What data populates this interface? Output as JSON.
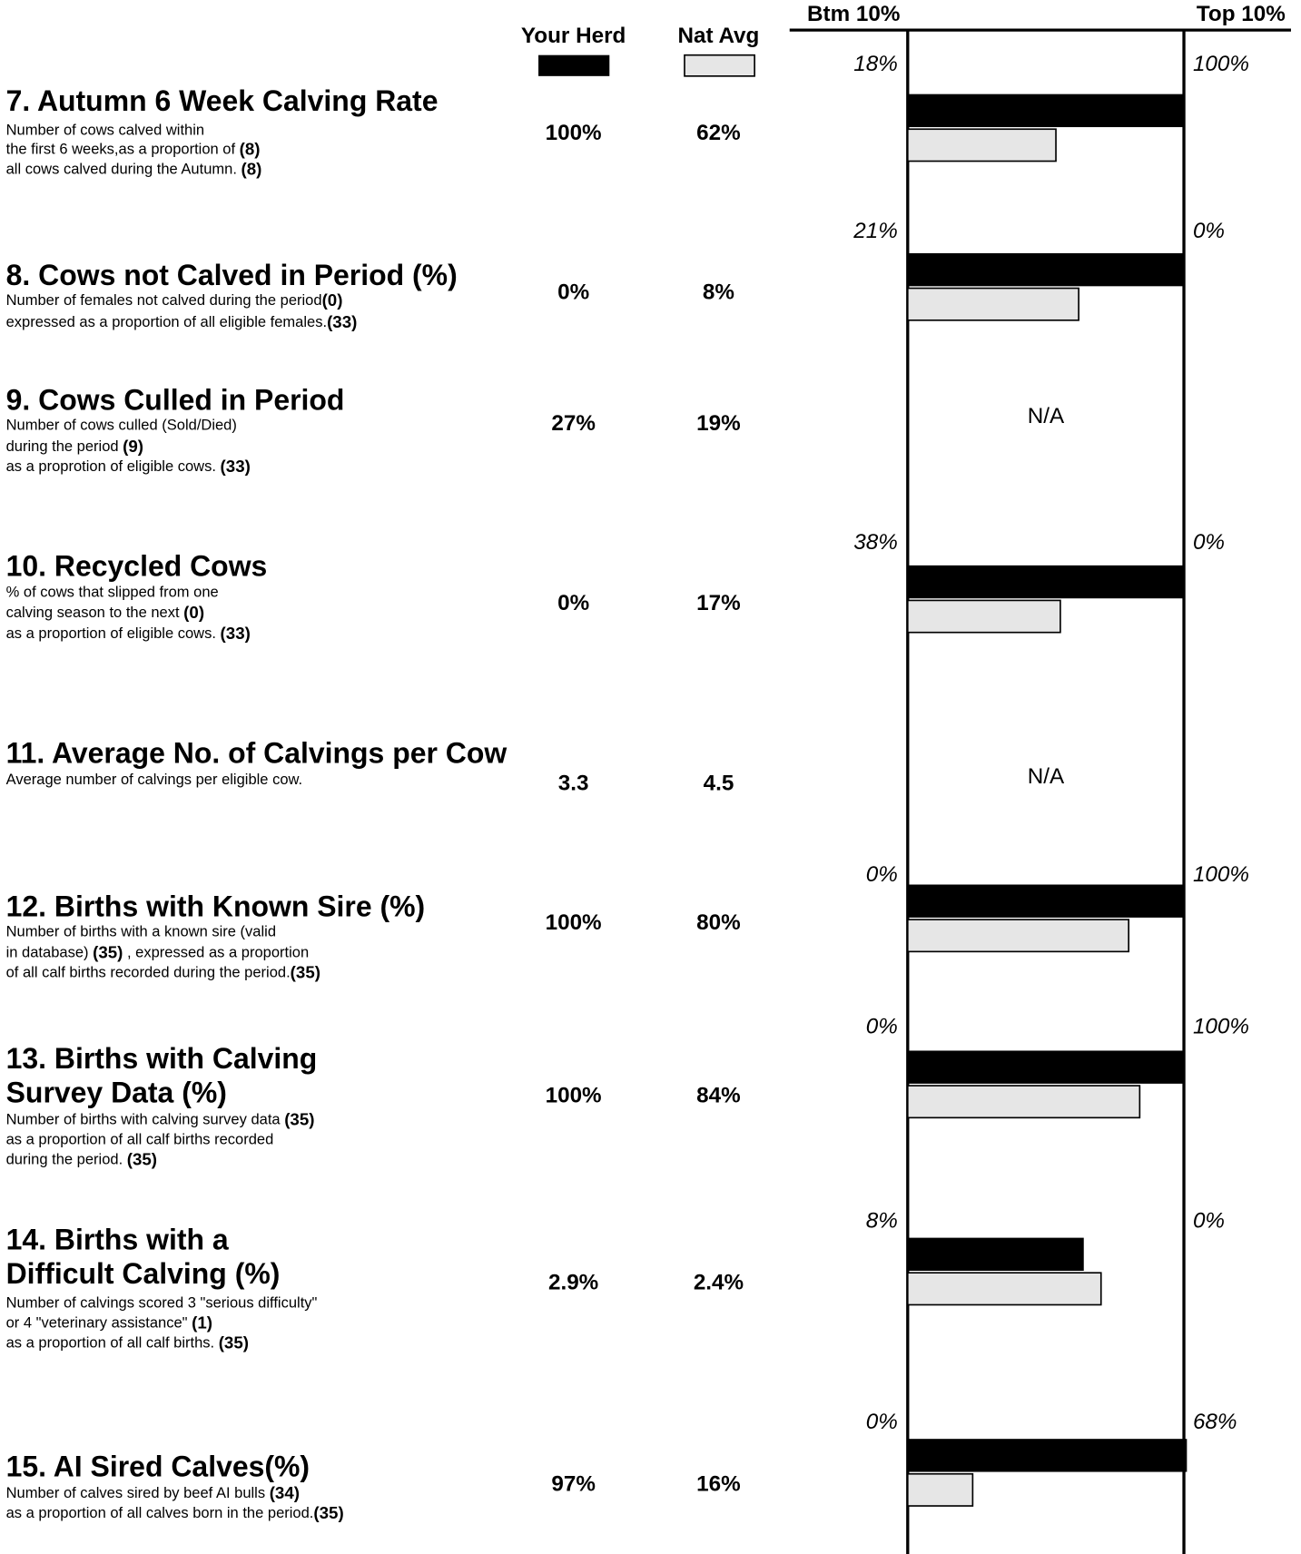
{
  "header": {
    "your_herd": "Your Herd",
    "nat_avg": "Nat Avg",
    "bottom": "Btm 10%",
    "top": "Top 10%",
    "herd_color": "#000000",
    "nat_color": "#e6e6e6"
  },
  "rows": [
    {
      "title": [
        "7. Autumn 6 Week Calving Rate"
      ],
      "description": [
        [
          {
            "text": "Number of cows calved within"
          }
        ],
        [
          {
            "text": "the first 6 weeks,as a proportion of  "
          },
          {
            "text": "(8)",
            "bold": true
          }
        ],
        [
          {
            "text": "all cows calved during the Autumn.  "
          },
          {
            "text": "(8)",
            "bold": true
          }
        ]
      ],
      "herd": {
        "value": 100,
        "label": "100%"
      },
      "nat": {
        "value": 62,
        "label": "62%"
      },
      "btm": {
        "value": 18,
        "label": "18%"
      },
      "top": {
        "value": 100,
        "label": "100%"
      }
    },
    {
      "title": [
        "8. Cows not Calved in Period (%)"
      ],
      "description": [
        [
          {
            "text": "Number of females not calved during the period"
          },
          {
            "text": "(0)",
            "bold": true
          }
        ],
        [
          {
            "text": "expressed as a proportion of all eligible females."
          },
          {
            "text": "(33)",
            "bold": true
          }
        ]
      ],
      "herd": {
        "value": 0,
        "label": "0%"
      },
      "nat": {
        "value": 8,
        "label": "8%"
      },
      "btm": {
        "value": 21,
        "label": "21%"
      },
      "top": {
        "value": 0,
        "label": "0%"
      }
    },
    {
      "title": [
        "9. Cows Culled in Period"
      ],
      "description": [
        [
          {
            "text": "Number of cows culled (Sold/Died)"
          }
        ],
        [
          {
            "text": "during the period  "
          },
          {
            "text": "(9)",
            "bold": true
          }
        ],
        [
          {
            "text": "as a proprotion of eligible cows. "
          },
          {
            "text": "(33)",
            "bold": true
          }
        ]
      ],
      "herd": {
        "value": 27,
        "label": "27%"
      },
      "nat": {
        "value": 19,
        "label": "19%"
      },
      "scale": "N/A"
    },
    {
      "title": [
        "10. Recycled Cows"
      ],
      "description": [
        [
          {
            "text": "% of cows that slipped from one"
          }
        ],
        [
          {
            "text": "calving season to the next  "
          },
          {
            "text": "(0)",
            "bold": true
          }
        ],
        [
          {
            "text": "as a proportion of eligible cows. "
          },
          {
            "text": "(33)",
            "bold": true
          }
        ]
      ],
      "herd": {
        "value": 0,
        "label": "0%"
      },
      "nat": {
        "value": 17,
        "label": "17%"
      },
      "btm": {
        "value": 38,
        "label": "38%"
      },
      "top": {
        "value": 0,
        "label": "0%"
      }
    },
    {
      "title": [
        "11. Average No. of Calvings per Cow"
      ],
      "description": [
        [
          {
            "text": "Average number of calvings per eligible cow."
          }
        ]
      ],
      "herd": 3.3,
      "nat": 4.5,
      "scale": "N/A"
    },
    {
      "title": [
        "12. Births with Known Sire (%)"
      ],
      "description": [
        [
          {
            "text": "Number of births with a known sire (valid"
          }
        ],
        [
          {
            "text": "in database) "
          },
          {
            "text": "(35)",
            "bold": true
          },
          {
            "text": "  , expressed as a proportion"
          }
        ],
        [
          {
            "text": "of all calf births recorded during the period."
          },
          {
            "text": "(35)",
            "bold": true
          }
        ]
      ],
      "herd": {
        "value": 100,
        "label": "100%"
      },
      "nat": {
        "value": 80,
        "label": "80%"
      },
      "btm": {
        "value": 0,
        "label": "0%"
      },
      "top": {
        "value": 100,
        "label": "100%"
      }
    },
    {
      "title": [
        "13. Births with Calving",
        "Survey Data (%)"
      ],
      "description": [
        [
          {
            "text": "Number of births with calving survey data "
          },
          {
            "text": "(35)",
            "bold": true
          }
        ],
        [
          {
            "text": "as a proportion of all calf births recorded"
          }
        ],
        [
          {
            "text": "during the period. "
          },
          {
            "text": "(35)",
            "bold": true
          }
        ]
      ],
      "herd": {
        "value": 100,
        "label": "100%"
      },
      "nat": {
        "value": 84,
        "label": "84%"
      },
      "btm": {
        "value": 0,
        "label": "0%"
      },
      "top": {
        "value": 100,
        "label": "100%"
      }
    },
    {
      "title": [
        "14. Births with a",
        "Difficult Calving (%)"
      ],
      "description": [
        [
          {
            "text": "Number of calvings scored 3 \"serious difficulty\""
          }
        ],
        [
          {
            "text": "or 4 \"veterinary assistance\"   "
          },
          {
            "text": "(1)",
            "bold": true
          }
        ],
        [
          {
            "text": "as a proportion of all calf births. "
          },
          {
            "text": "(35)",
            "bold": true
          }
        ]
      ],
      "herd": {
        "value": 2.9,
        "label": "2.9%"
      },
      "nat": {
        "value": 2.4,
        "label": "2.4%"
      },
      "btm": {
        "value": 8,
        "label": "8%"
      },
      "top": {
        "value": 0,
        "label": "0%"
      }
    },
    {
      "title": [
        "15. AI Sired Calves(%)"
      ],
      "description": [
        [
          {
            "text": "Number of calves sired by beef AI bulls  "
          },
          {
            "text": "(34)",
            "bold": true
          }
        ],
        [
          {
            "text": "as a proportion of all calves born in the period."
          },
          {
            "text": "(35)",
            "bold": true
          }
        ]
      ],
      "herd": {
        "value": 97,
        "label": "97%"
      },
      "nat": {
        "value": 16,
        "label": "16%"
      },
      "btm": {
        "value": 0,
        "label": "0%"
      },
      "top": {
        "value": 68,
        "label": "68%"
      }
    }
  ]
}
